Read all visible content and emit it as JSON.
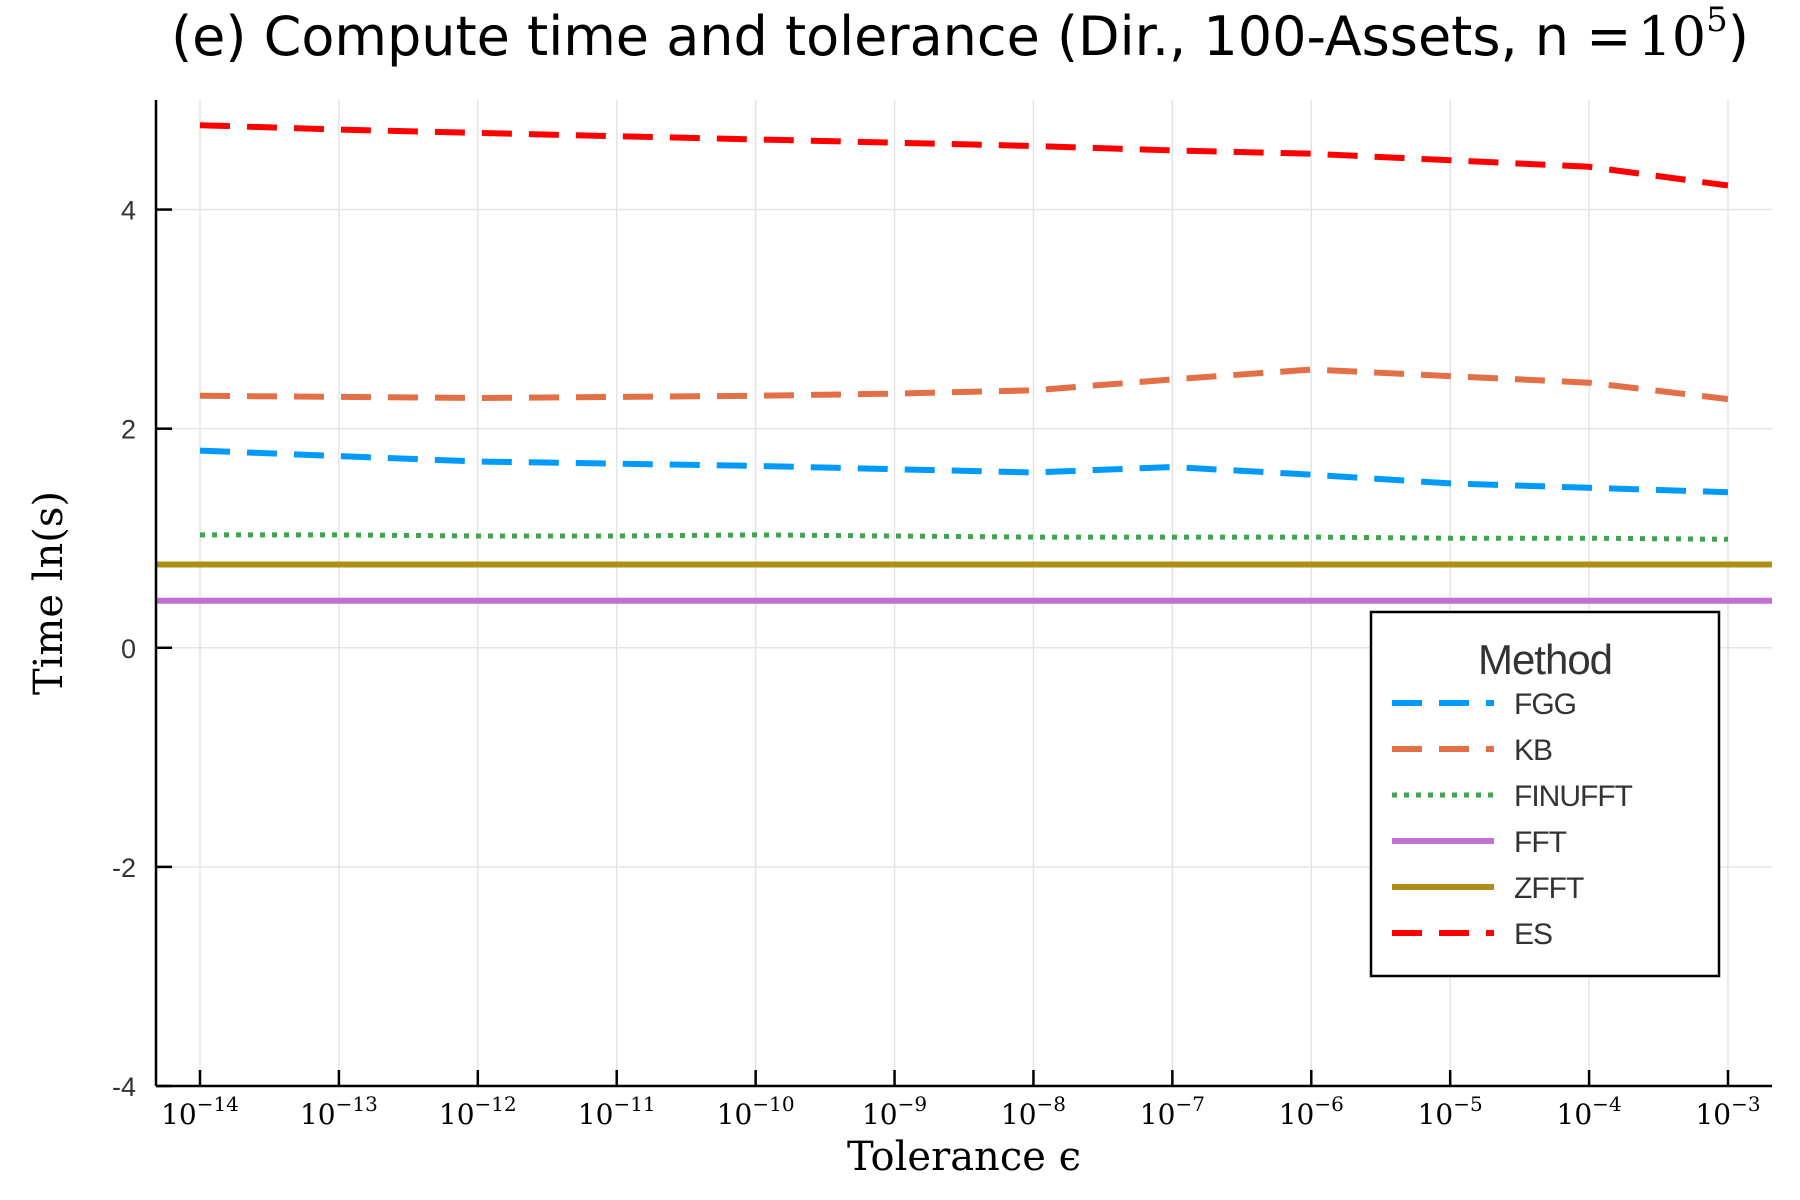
{
  "chart_data": {
    "type": "line",
    "title_main": "(e) Compute time and tolerance (Dir., 100-Assets, n =",
    "title_base": "10",
    "title_exp": "5",
    "title_close": ")",
    "xlabel": "Tolerance ϵ",
    "ylabel": "Time ln(s)",
    "x_scale": "log",
    "xlim": [
      1e-14,
      0.001
    ],
    "ylim": [
      -4,
      5
    ],
    "x_ticks": [
      {
        "value": 1e-14,
        "base": "10",
        "exp": "−14"
      },
      {
        "value": 1e-13,
        "base": "10",
        "exp": "−13"
      },
      {
        "value": 1e-12,
        "base": "10",
        "exp": "−12"
      },
      {
        "value": 1e-11,
        "base": "10",
        "exp": "−11"
      },
      {
        "value": 1e-10,
        "base": "10",
        "exp": "−10"
      },
      {
        "value": 1e-09,
        "base": "10",
        "exp": "−9"
      },
      {
        "value": 1e-08,
        "base": "10",
        "exp": "−8"
      },
      {
        "value": 1e-07,
        "base": "10",
        "exp": "−7"
      },
      {
        "value": 1e-06,
        "base": "10",
        "exp": "−6"
      },
      {
        "value": 1e-05,
        "base": "10",
        "exp": "−5"
      },
      {
        "value": 0.0001,
        "base": "10",
        "exp": "−4"
      },
      {
        "value": 0.001,
        "base": "10",
        "exp": "−3"
      }
    ],
    "y_ticks": [
      {
        "value": 4,
        "label": "4"
      },
      {
        "value": 2,
        "label": "2"
      },
      {
        "value": 0,
        "label": "0"
      },
      {
        "value": -2,
        "label": "-2"
      },
      {
        "value": -4,
        "label": "-4"
      }
    ],
    "grid": true,
    "legend_title": "Method",
    "legend_position": "right",
    "x": [
      1e-14,
      1e-13,
      1e-12,
      1e-11,
      1e-10,
      1e-09,
      1e-08,
      1e-07,
      1e-06,
      1e-05,
      0.0001,
      0.001
    ],
    "series": [
      {
        "name": "FGG",
        "color": "#009AFA",
        "style": "dash",
        "values": [
          1.8,
          1.75,
          1.7,
          1.68,
          1.66,
          1.63,
          1.6,
          1.65,
          1.58,
          1.5,
          1.46,
          1.42
        ]
      },
      {
        "name": "KB",
        "color": "#E26F46",
        "style": "dash",
        "values": [
          2.3,
          2.29,
          2.28,
          2.29,
          2.3,
          2.32,
          2.35,
          2.45,
          2.54,
          2.48,
          2.42,
          2.27
        ]
      },
      {
        "name": "FINUFFT",
        "color": "#3EA44E",
        "style": "dot",
        "values": [
          1.03,
          1.03,
          1.02,
          1.02,
          1.03,
          1.02,
          1.01,
          1.01,
          1.01,
          1.0,
          1.0,
          0.99
        ]
      },
      {
        "name": "FFT",
        "color": "#C271D2",
        "style": "solid",
        "extend": "full",
        "values": [
          0.43,
          0.43,
          0.43,
          0.43,
          0.43,
          0.43,
          0.43,
          0.43,
          0.43,
          0.43,
          0.43,
          0.43
        ]
      },
      {
        "name": "ZFFT",
        "color": "#AC8E18",
        "style": "solid",
        "extend": "full",
        "values": [
          0.76,
          0.76,
          0.76,
          0.76,
          0.76,
          0.76,
          0.76,
          0.76,
          0.76,
          0.76,
          0.76,
          0.76
        ]
      },
      {
        "name": "ES",
        "color": "#FF0000",
        "style": "dash",
        "values": [
          4.77,
          4.73,
          4.7,
          4.67,
          4.64,
          4.61,
          4.58,
          4.54,
          4.51,
          4.45,
          4.39,
          4.22
        ]
      }
    ]
  }
}
